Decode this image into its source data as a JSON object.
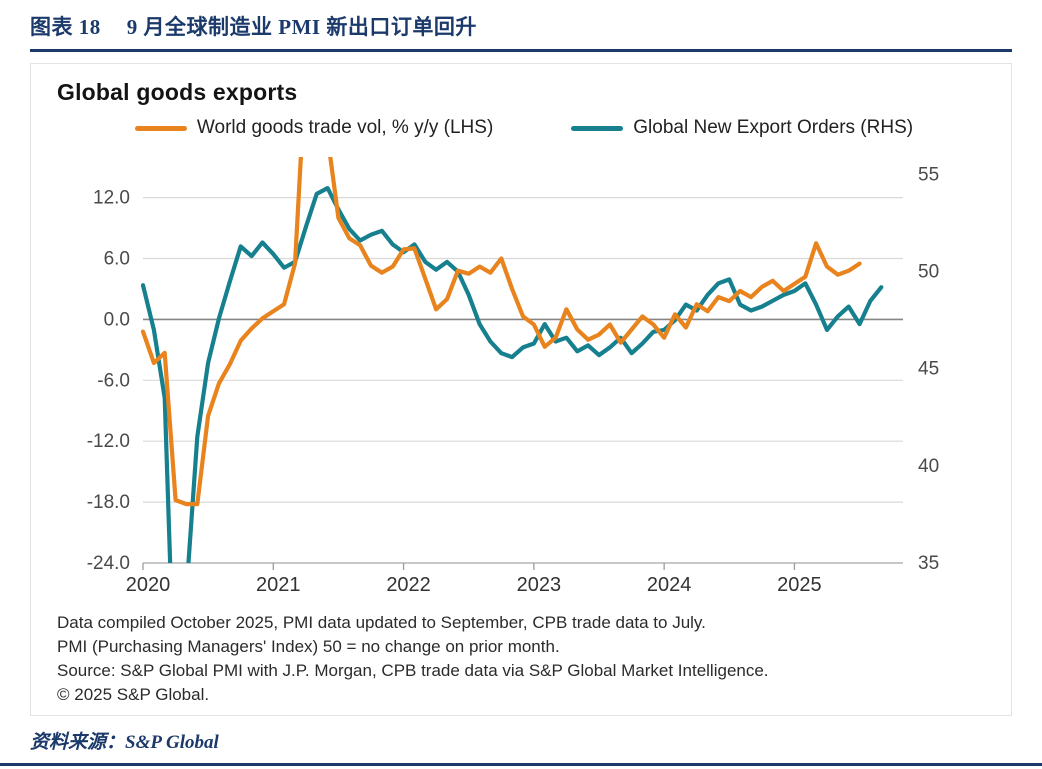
{
  "header": {
    "figure_label": "图表 18",
    "figure_title": "9 月全球制造业 PMI 新出口订单回升"
  },
  "chart_data": {
    "type": "line",
    "title": "Global goods exports",
    "x_unit": "monthly",
    "x_start": "2020-01",
    "x_tick_labels": [
      "2020",
      "2021",
      "2022",
      "2023",
      "2024",
      "2025"
    ],
    "grid": "horizontal",
    "legend_position": "top",
    "lhs": {
      "label": "World goods trade vol, % y/y (LHS)",
      "color": "#E8831D",
      "axis_ticks": [
        12,
        6,
        0,
        -6,
        -12,
        -18,
        -24
      ],
      "axis_range": [
        -24,
        16
      ],
      "values": [
        -1.2,
        -4.3,
        -3.3,
        -17.8,
        -18.2,
        -18.2,
        -9.5,
        -6.3,
        -4.4,
        -2.1,
        -0.9,
        0.1,
        0.8,
        1.5,
        5.5,
        25.0,
        24.0,
        18.0,
        10.0,
        8.0,
        7.3,
        5.3,
        4.6,
        5.2,
        6.9,
        7.0,
        4.0,
        1.0,
        2.0,
        4.8,
        4.5,
        5.2,
        4.6,
        6.0,
        3.0,
        0.3,
        -0.5,
        -2.7,
        -1.8,
        1.0,
        -1.0,
        -2.0,
        -1.5,
        -0.5,
        -2.3,
        -1.0,
        0.3,
        -0.5,
        -1.8,
        0.5,
        -0.8,
        1.5,
        0.8,
        2.2,
        1.8,
        2.8,
        2.2,
        3.2,
        3.8,
        2.8,
        3.5,
        4.2,
        7.5,
        5.2,
        4.4,
        4.8,
        5.5
      ]
    },
    "rhs": {
      "label": "Global New Export Orders (RHS)",
      "color": "#17808E",
      "axis_ticks": [
        55,
        50,
        45,
        40,
        35
      ],
      "axis_range": [
        35,
        55.9
      ],
      "values": [
        49.3,
        47.0,
        43.5,
        26.5,
        33.5,
        41.5,
        45.3,
        47.6,
        49.5,
        51.3,
        50.8,
        51.5,
        50.9,
        50.2,
        50.5,
        52.3,
        54.0,
        54.3,
        53.2,
        52.2,
        51.6,
        51.9,
        52.1,
        51.4,
        51.0,
        51.4,
        50.5,
        50.1,
        50.5,
        50.0,
        48.8,
        47.3,
        46.4,
        45.8,
        45.6,
        46.1,
        46.3,
        47.3,
        46.4,
        46.6,
        45.9,
        46.2,
        45.7,
        46.1,
        46.6,
        45.8,
        46.3,
        46.9,
        47.0,
        47.5,
        48.3,
        48.0,
        48.8,
        49.4,
        49.6,
        48.3,
        48.0,
        48.2,
        48.5,
        48.8,
        49.0,
        49.4,
        48.3,
        47.0,
        47.7,
        48.2,
        47.3,
        48.5,
        49.2
      ]
    }
  },
  "footnotes": {
    "lines": [
      "Data compiled October 2025, PMI data updated to September, CPB trade data to July.",
      "PMI (Purchasing Managers' Index) 50 = no change on prior month.",
      "Source: S&P Global PMI with J.P. Morgan, CPB trade data via S&P Global Market Intelligence.",
      "© 2025 S&P Global."
    ]
  },
  "source": {
    "prefix": "资料来源：",
    "value": "S&P Global"
  },
  "colors": {
    "accent_navy": "#1b3a6b",
    "orange": "#E8831D",
    "teal": "#17808E"
  }
}
